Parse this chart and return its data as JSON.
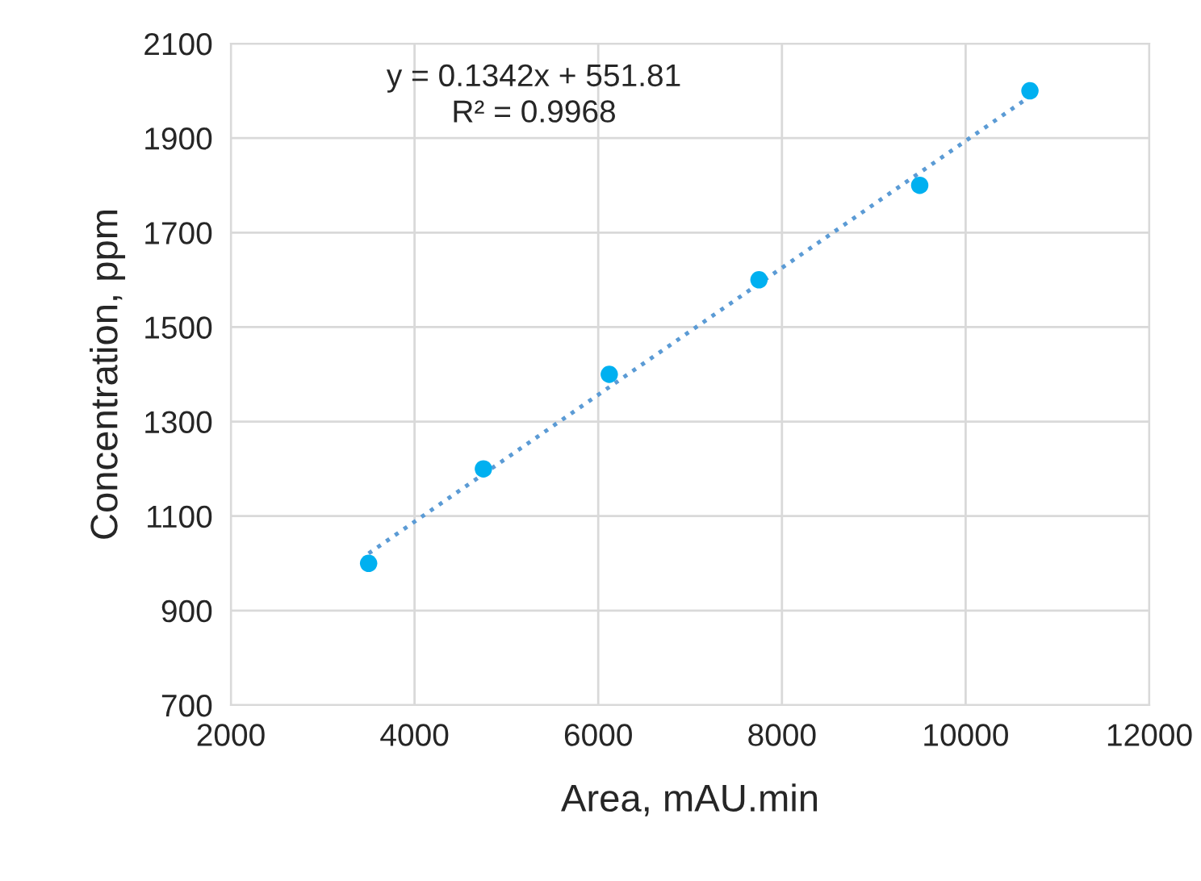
{
  "chart_data": {
    "type": "scatter",
    "xlabel": "Area, mAU.min",
    "ylabel": "Concentration, ppm",
    "annotations": [
      "y = 0.1342x + 551.81",
      "R² = 0.9968"
    ],
    "series": [
      {
        "color": "#00b0f0",
        "marker": "circle",
        "x": [
          3500,
          4750,
          6120,
          7750,
          9500,
          10700
        ],
        "values": [
          1000,
          1200,
          1400,
          1600,
          1800,
          2000
        ]
      },
      {
        "type": "line",
        "color": "#5b9bd5",
        "line_style": "dotted",
        "marker": "none",
        "x": [
          3500,
          10700
        ],
        "values": [
          1021,
          1988
        ]
      }
    ],
    "xlim": [
      2000,
      12000
    ],
    "xticks": [
      2000,
      4000,
      6000,
      8000,
      10000,
      12000
    ],
    "ylim": [
      700,
      2100
    ],
    "yticks": [
      700,
      900,
      1100,
      1300,
      1500,
      1700,
      1900,
      2100
    ],
    "grid": true,
    "legend": false
  }
}
